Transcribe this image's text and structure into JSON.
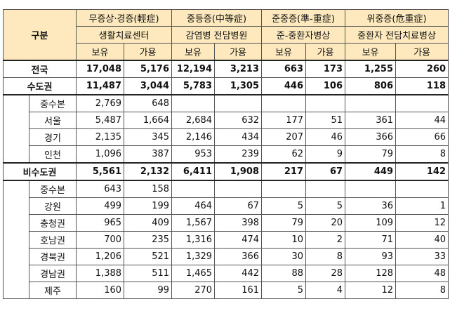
{
  "header": {
    "gubun": "구분",
    "groups": [
      {
        "title": "무증상·경증(輕症)",
        "sub": "생활치료센터"
      },
      {
        "title": "중등증(中等症)",
        "sub": "감염병 전담병원"
      },
      {
        "title": "준중증(準-重症)",
        "sub": "준-중환자병상"
      },
      {
        "title": "위중증(危重症)",
        "sub": "중환자 전담치료병상"
      }
    ],
    "have": "보유",
    "avail": "가용"
  },
  "national": {
    "label": "전국",
    "values": [
      "17,048",
      "5,176",
      "12,194",
      "3,213",
      "663",
      "173",
      "1,255",
      "260"
    ]
  },
  "capital": {
    "label": "수도권",
    "values": [
      "11,487",
      "3,044",
      "5,783",
      "1,305",
      "446",
      "106",
      "806",
      "118"
    ],
    "rows": [
      {
        "label": "중수본",
        "values": [
          "2,769",
          "648",
          "",
          "",
          "",
          "",
          "",
          ""
        ]
      },
      {
        "label": "서울",
        "values": [
          "5,487",
          "1,664",
          "2,684",
          "632",
          "177",
          "51",
          "361",
          "44"
        ]
      },
      {
        "label": "경기",
        "values": [
          "2,135",
          "345",
          "2,146",
          "434",
          "207",
          "46",
          "366",
          "66"
        ]
      },
      {
        "label": "인천",
        "values": [
          "1,096",
          "387",
          "953",
          "239",
          "62",
          "9",
          "79",
          "8"
        ]
      }
    ]
  },
  "noncapital": {
    "label": "비수도권",
    "values": [
      "5,561",
      "2,132",
      "6,411",
      "1,908",
      "217",
      "67",
      "449",
      "142"
    ],
    "rows": [
      {
        "label": "중수본",
        "values": [
          "643",
          "158",
          "",
          "",
          "",
          "",
          "",
          ""
        ]
      },
      {
        "label": "강원",
        "values": [
          "499",
          "199",
          "464",
          "67",
          "5",
          "5",
          "36",
          "1"
        ]
      },
      {
        "label": "충청권",
        "values": [
          "965",
          "409",
          "1,567",
          "398",
          "79",
          "20",
          "109",
          "12"
        ]
      },
      {
        "label": "호남권",
        "values": [
          "700",
          "235",
          "1,316",
          "474",
          "10",
          "2",
          "71",
          "40"
        ]
      },
      {
        "label": "경북권",
        "values": [
          "1,206",
          "521",
          "1,329",
          "366",
          "30",
          "8",
          "93",
          "33"
        ]
      },
      {
        "label": "경남권",
        "values": [
          "1,388",
          "511",
          "1,465",
          "442",
          "88",
          "28",
          "128",
          "48"
        ]
      },
      {
        "label": "제주",
        "values": [
          "160",
          "99",
          "270",
          "161",
          "5",
          "4",
          "12",
          "8"
        ]
      }
    ]
  }
}
